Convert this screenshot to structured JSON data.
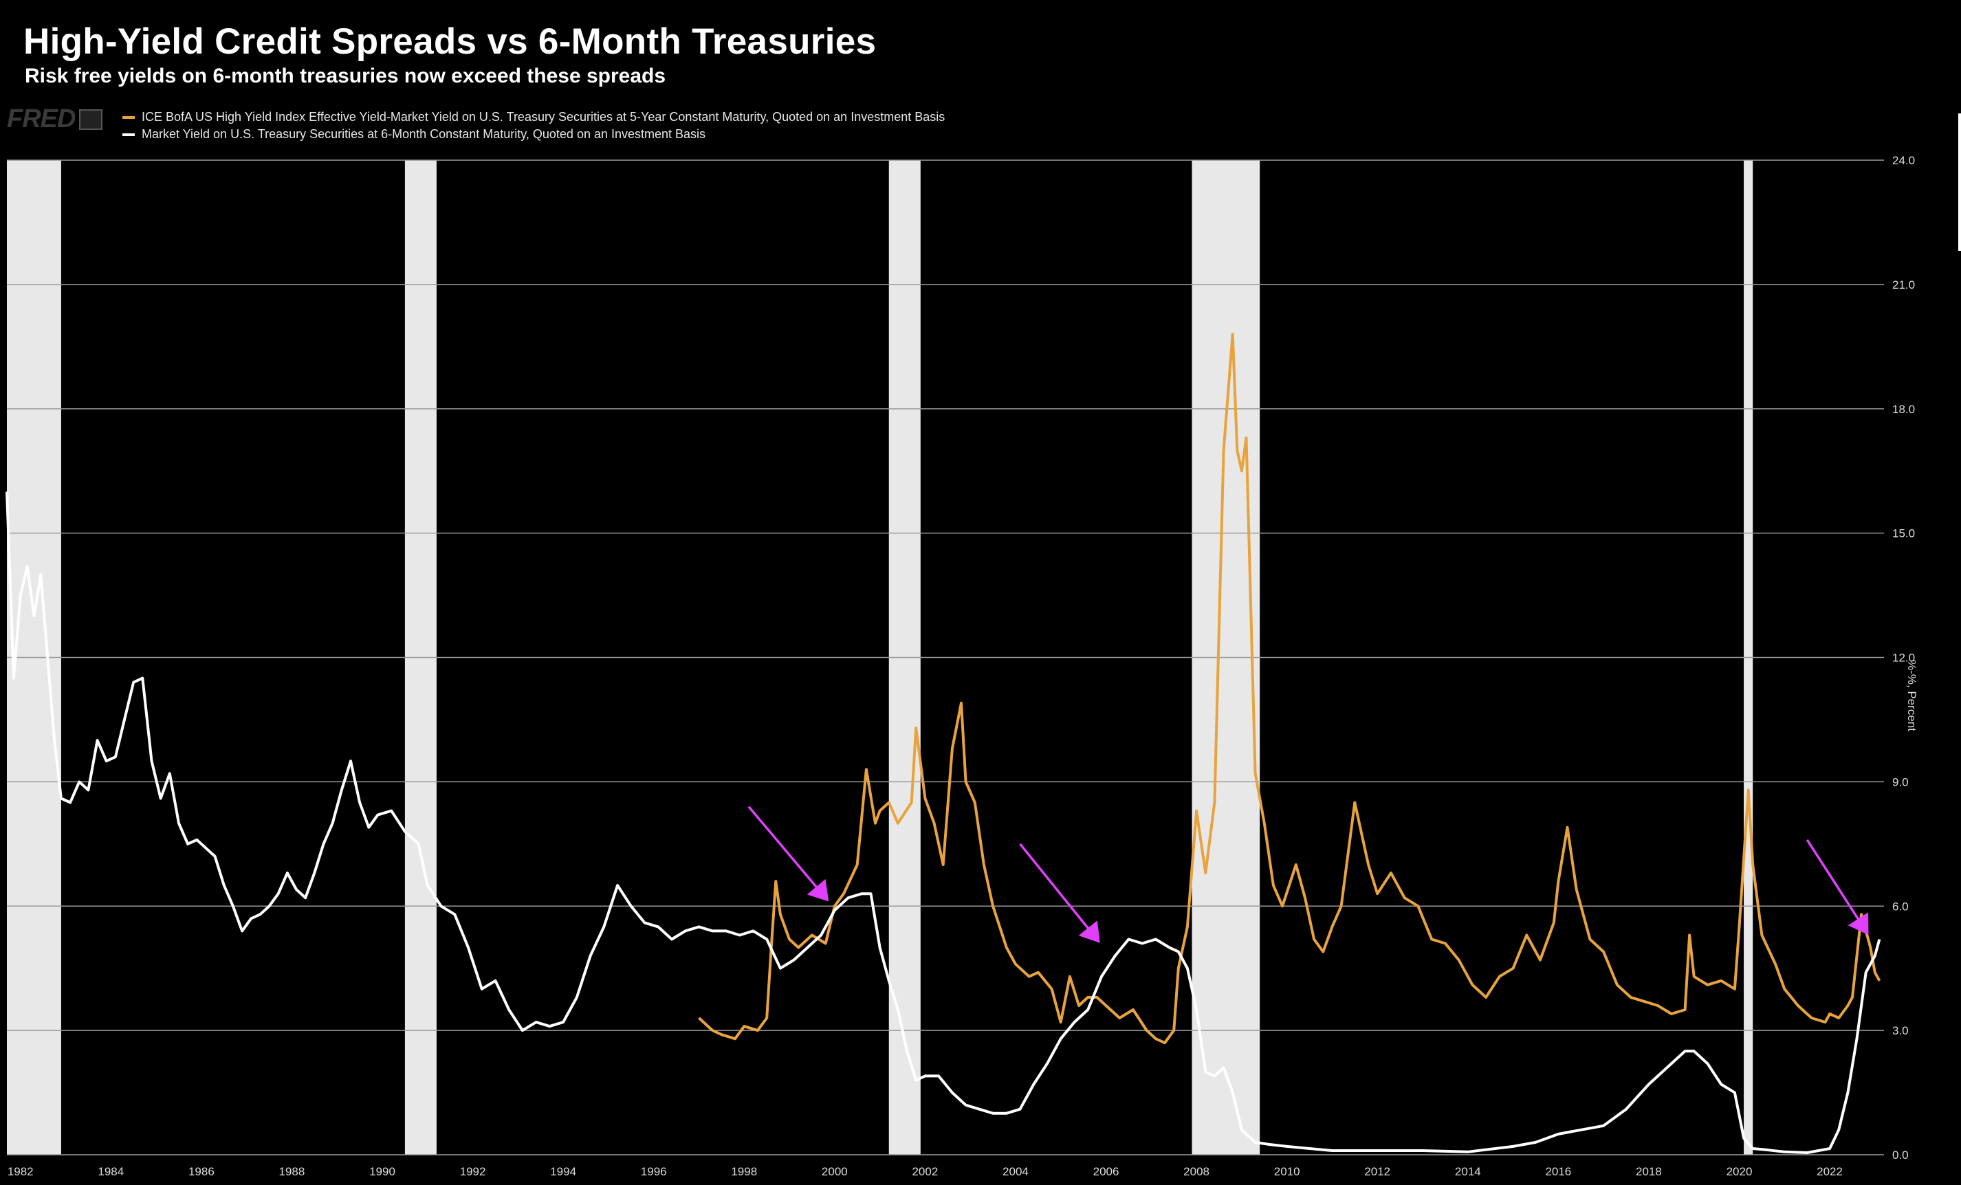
{
  "header": {
    "title": "High-Yield Credit Spreads vs 6-Month Treasuries",
    "subtitle": "Risk free yields on 6-month treasuries now exceed these spreads",
    "logo_text": "FRED"
  },
  "colors": {
    "spread": "#e8a33d",
    "treasury": "#ffffff",
    "recession": "#e8e8e8",
    "grid": "#9a9a9a",
    "arrow": "#e040fb",
    "background": "#000000"
  },
  "chart_data": {
    "type": "line",
    "title": "High-Yield Credit Spreads vs 6-Month Treasuries",
    "ylabel": "%-%, Percent",
    "xlim": [
      1981.7,
      2023.2
    ],
    "ylim": [
      0,
      24
    ],
    "x_ticks": [
      "1982",
      "1984",
      "1986",
      "1988",
      "1990",
      "1992",
      "1994",
      "1996",
      "1998",
      "2000",
      "2002",
      "2004",
      "2006",
      "2008",
      "2010",
      "2012",
      "2014",
      "2016",
      "2018",
      "2020",
      "2022"
    ],
    "x_tick_values": [
      1982,
      1984,
      1986,
      1988,
      1990,
      1992,
      1994,
      1996,
      1998,
      2000,
      2002,
      2004,
      2006,
      2008,
      2010,
      2012,
      2014,
      2016,
      2018,
      2020,
      2022
    ],
    "y_ticks": [
      "0.0",
      "3.0",
      "6.0",
      "9.0",
      "12.0",
      "15.0",
      "18.0",
      "21.0",
      "24.0"
    ],
    "y_tick_values": [
      0,
      3,
      6,
      9,
      12,
      15,
      18,
      21,
      24
    ],
    "legend": [
      "ICE BofA US High Yield Index Effective Yield-Market Yield on U.S. Treasury Securities at 5-Year Constant Maturity, Quoted on an Investment Basis",
      "Market Yield on U.S. Treasury Securities at 6-Month Constant Maturity, Quoted on an Investment Basis"
    ],
    "recessions": [
      [
        1981.7,
        1982.9
      ],
      [
        1990.5,
        1991.2
      ],
      [
        2001.2,
        2001.9
      ],
      [
        2007.9,
        2009.4
      ],
      [
        2020.1,
        2020.3
      ]
    ],
    "series": [
      {
        "name": "ICE BofA US High Yield Index Effective Yield-Market Yield on U.S. Treasury Securities at 5-Year Constant Maturity, Quoted on an Investment Basis",
        "x": [
          1997.0,
          1997.3,
          1997.5,
          1997.8,
          1998.0,
          1998.3,
          1998.5,
          1998.6,
          1998.7,
          1998.8,
          1999.0,
          1999.2,
          1999.5,
          1999.8,
          2000.0,
          2000.2,
          2000.5,
          2000.7,
          2000.9,
          2001.0,
          2001.2,
          2001.4,
          2001.7,
          2001.8,
          2002.0,
          2002.2,
          2002.4,
          2002.6,
          2002.8,
          2002.9,
          2003.1,
          2003.3,
          2003.5,
          2003.8,
          2004.0,
          2004.3,
          2004.5,
          2004.8,
          2005.0,
          2005.2,
          2005.4,
          2005.6,
          2005.8,
          2006.0,
          2006.3,
          2006.6,
          2006.9,
          2007.1,
          2007.3,
          2007.5,
          2007.6,
          2007.8,
          2008.0,
          2008.2,
          2008.4,
          2008.6,
          2008.8,
          2008.9,
          2009.0,
          2009.1,
          2009.3,
          2009.5,
          2009.7,
          2009.9,
          2010.2,
          2010.4,
          2010.6,
          2010.8,
          2011.0,
          2011.2,
          2011.5,
          2011.7,
          2011.8,
          2012.0,
          2012.3,
          2012.6,
          2012.9,
          2013.2,
          2013.5,
          2013.8,
          2014.1,
          2014.4,
          2014.7,
          2015.0,
          2015.3,
          2015.6,
          2015.9,
          2016.0,
          2016.2,
          2016.4,
          2016.7,
          2017.0,
          2017.3,
          2017.6,
          2017.9,
          2018.2,
          2018.5,
          2018.8,
          2018.9,
          2019.0,
          2019.3,
          2019.6,
          2019.9,
          2020.0,
          2020.2,
          2020.3,
          2020.5,
          2020.8,
          2021.0,
          2021.3,
          2021.6,
          2021.9,
          2022.0,
          2022.2,
          2022.4,
          2022.5,
          2022.7,
          2022.9,
          2023.0,
          2023.1
        ],
        "y": [
          3.3,
          3.0,
          2.9,
          2.8,
          3.1,
          3.0,
          3.3,
          5.0,
          6.6,
          5.8,
          5.2,
          5.0,
          5.3,
          5.1,
          6.0,
          6.3,
          7.0,
          9.3,
          8.0,
          8.3,
          8.5,
          8.0,
          8.5,
          10.3,
          8.6,
          8.0,
          7.0,
          9.8,
          10.9,
          9.0,
          8.5,
          7.0,
          6.0,
          5.0,
          4.6,
          4.3,
          4.4,
          4.0,
          3.2,
          4.3,
          3.6,
          3.8,
          3.8,
          3.6,
          3.3,
          3.5,
          3.0,
          2.8,
          2.7,
          3.0,
          4.5,
          5.5,
          8.3,
          6.8,
          8.5,
          17.0,
          19.8,
          17.0,
          16.5,
          17.3,
          9.2,
          8.0,
          6.5,
          6.0,
          7.0,
          6.2,
          5.2,
          4.9,
          5.5,
          6.0,
          8.5,
          7.5,
          7.0,
          6.3,
          6.8,
          6.2,
          6.0,
          5.2,
          5.1,
          4.7,
          4.1,
          3.8,
          4.3,
          4.5,
          5.3,
          4.7,
          5.6,
          6.6,
          7.9,
          6.4,
          5.2,
          4.9,
          4.1,
          3.8,
          3.7,
          3.6,
          3.4,
          3.5,
          5.3,
          4.3,
          4.1,
          4.2,
          4.0,
          5.5,
          8.8,
          7.0,
          5.3,
          4.6,
          4.0,
          3.6,
          3.3,
          3.2,
          3.4,
          3.3,
          3.6,
          3.8,
          5.8,
          5.0,
          4.4,
          4.2
        ]
      },
      {
        "name": "Market Yield on U.S. Treasury Securities at 6-Month Constant Maturity, Quoted on an Investment Basis",
        "x": [
          1981.7,
          1981.85,
          1982.0,
          1982.15,
          1982.3,
          1982.45,
          1982.6,
          1982.75,
          1982.9,
          1983.1,
          1983.3,
          1983.5,
          1983.7,
          1983.9,
          1984.1,
          1984.3,
          1984.5,
          1984.7,
          1984.9,
          1985.1,
          1985.3,
          1985.5,
          1985.7,
          1985.9,
          1986.1,
          1986.3,
          1986.5,
          1986.7,
          1986.9,
          1987.1,
          1987.3,
          1987.5,
          1987.7,
          1987.9,
          1988.1,
          1988.3,
          1988.5,
          1988.7,
          1988.9,
          1989.1,
          1989.3,
          1989.5,
          1989.7,
          1989.9,
          1990.2,
          1990.5,
          1990.8,
          1991.0,
          1991.3,
          1991.6,
          1991.9,
          1992.2,
          1992.5,
          1992.8,
          1993.1,
          1993.4,
          1993.7,
          1994.0,
          1994.3,
          1994.6,
          1994.9,
          1995.2,
          1995.5,
          1995.8,
          1996.1,
          1996.4,
          1996.7,
          1997.0,
          1997.3,
          1997.6,
          1997.9,
          1998.2,
          1998.5,
          1998.8,
          1999.1,
          1999.4,
          1999.7,
          2000.0,
          2000.3,
          2000.6,
          2000.8,
          2001.0,
          2001.2,
          2001.4,
          2001.6,
          2001.8,
          2002.0,
          2002.3,
          2002.6,
          2002.9,
          2003.2,
          2003.5,
          2003.8,
          2004.1,
          2004.4,
          2004.7,
          2005.0,
          2005.3,
          2005.6,
          2005.9,
          2006.2,
          2006.5,
          2006.8,
          2007.1,
          2007.4,
          2007.6,
          2007.8,
          2008.0,
          2008.2,
          2008.4,
          2008.6,
          2008.8,
          2009.0,
          2009.3,
          2009.6,
          2010.0,
          2011.0,
          2012.0,
          2013.0,
          2014.0,
          2015.0,
          2015.5,
          2016.0,
          2016.5,
          2017.0,
          2017.5,
          2018.0,
          2018.5,
          2018.8,
          2019.0,
          2019.3,
          2019.6,
          2019.9,
          2020.1,
          2020.3,
          2020.6,
          2021.0,
          2021.5,
          2022.0,
          2022.2,
          2022.4,
          2022.6,
          2022.8,
          2023.0,
          2023.1
        ],
        "y": [
          16.0,
          11.5,
          13.5,
          14.2,
          13.0,
          14.0,
          12.0,
          10.0,
          8.6,
          8.5,
          9.0,
          8.8,
          10.0,
          9.5,
          9.6,
          10.5,
          11.4,
          11.5,
          9.5,
          8.6,
          9.2,
          8.0,
          7.5,
          7.6,
          7.4,
          7.2,
          6.5,
          6.0,
          5.4,
          5.7,
          5.8,
          6.0,
          6.3,
          6.8,
          6.4,
          6.2,
          6.8,
          7.5,
          8.0,
          8.8,
          9.5,
          8.5,
          7.9,
          8.2,
          8.3,
          7.8,
          7.5,
          6.5,
          6.0,
          5.8,
          5.0,
          4.0,
          4.2,
          3.5,
          3.0,
          3.2,
          3.1,
          3.2,
          3.8,
          4.8,
          5.5,
          6.5,
          6.0,
          5.6,
          5.5,
          5.2,
          5.4,
          5.5,
          5.4,
          5.4,
          5.3,
          5.4,
          5.2,
          4.5,
          4.7,
          5.0,
          5.3,
          5.9,
          6.2,
          6.3,
          6.3,
          5.0,
          4.2,
          3.5,
          2.5,
          1.8,
          1.9,
          1.9,
          1.5,
          1.2,
          1.1,
          1.0,
          1.0,
          1.1,
          1.7,
          2.2,
          2.8,
          3.2,
          3.5,
          4.3,
          4.8,
          5.2,
          5.1,
          5.2,
          5.0,
          4.9,
          4.5,
          3.5,
          2.0,
          1.9,
          2.1,
          1.5,
          0.6,
          0.3,
          0.25,
          0.2,
          0.1,
          0.1,
          0.1,
          0.07,
          0.2,
          0.3,
          0.5,
          0.6,
          0.7,
          1.1,
          1.7,
          2.2,
          2.5,
          2.5,
          2.2,
          1.7,
          1.5,
          0.4,
          0.15,
          0.12,
          0.07,
          0.05,
          0.15,
          0.6,
          1.5,
          2.8,
          4.4,
          4.8,
          5.2
        ]
      }
    ],
    "annotations": [
      {
        "label": "pink arrow",
        "from": [
          1998.1,
          8.4
        ],
        "to": [
          1999.8,
          6.2
        ]
      },
      {
        "label": "pink arrow",
        "from": [
          2004.1,
          7.5
        ],
        "to": [
          2005.8,
          5.2
        ]
      },
      {
        "label": "pink arrow",
        "from": [
          2021.5,
          7.6
        ],
        "to": [
          2022.8,
          5.4
        ]
      }
    ]
  }
}
